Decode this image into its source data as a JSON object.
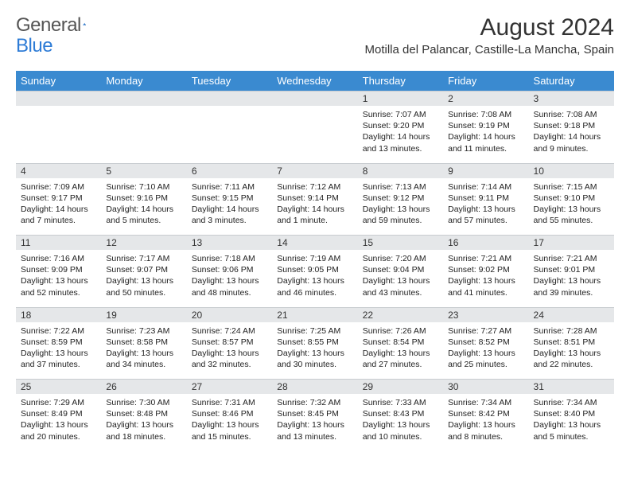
{
  "brand": {
    "part1": "General",
    "part2": "Blue"
  },
  "title": "August 2024",
  "location": "Motilla del Palancar, Castille-La Mancha, Spain",
  "header_bg": "#3a8ad0",
  "daynum_bg": "#e5e7e9",
  "weekdays": [
    "Sunday",
    "Monday",
    "Tuesday",
    "Wednesday",
    "Thursday",
    "Friday",
    "Saturday"
  ],
  "weeks": [
    [
      null,
      null,
      null,
      null,
      {
        "n": "1",
        "sr": "7:07 AM",
        "ss": "9:20 PM",
        "dl": "14 hours and 13 minutes."
      },
      {
        "n": "2",
        "sr": "7:08 AM",
        "ss": "9:19 PM",
        "dl": "14 hours and 11 minutes."
      },
      {
        "n": "3",
        "sr": "7:08 AM",
        "ss": "9:18 PM",
        "dl": "14 hours and 9 minutes."
      }
    ],
    [
      {
        "n": "4",
        "sr": "7:09 AM",
        "ss": "9:17 PM",
        "dl": "14 hours and 7 minutes."
      },
      {
        "n": "5",
        "sr": "7:10 AM",
        "ss": "9:16 PM",
        "dl": "14 hours and 5 minutes."
      },
      {
        "n": "6",
        "sr": "7:11 AM",
        "ss": "9:15 PM",
        "dl": "14 hours and 3 minutes."
      },
      {
        "n": "7",
        "sr": "7:12 AM",
        "ss": "9:14 PM",
        "dl": "14 hours and 1 minute."
      },
      {
        "n": "8",
        "sr": "7:13 AM",
        "ss": "9:12 PM",
        "dl": "13 hours and 59 minutes."
      },
      {
        "n": "9",
        "sr": "7:14 AM",
        "ss": "9:11 PM",
        "dl": "13 hours and 57 minutes."
      },
      {
        "n": "10",
        "sr": "7:15 AM",
        "ss": "9:10 PM",
        "dl": "13 hours and 55 minutes."
      }
    ],
    [
      {
        "n": "11",
        "sr": "7:16 AM",
        "ss": "9:09 PM",
        "dl": "13 hours and 52 minutes."
      },
      {
        "n": "12",
        "sr": "7:17 AM",
        "ss": "9:07 PM",
        "dl": "13 hours and 50 minutes."
      },
      {
        "n": "13",
        "sr": "7:18 AM",
        "ss": "9:06 PM",
        "dl": "13 hours and 48 minutes."
      },
      {
        "n": "14",
        "sr": "7:19 AM",
        "ss": "9:05 PM",
        "dl": "13 hours and 46 minutes."
      },
      {
        "n": "15",
        "sr": "7:20 AM",
        "ss": "9:04 PM",
        "dl": "13 hours and 43 minutes."
      },
      {
        "n": "16",
        "sr": "7:21 AM",
        "ss": "9:02 PM",
        "dl": "13 hours and 41 minutes."
      },
      {
        "n": "17",
        "sr": "7:21 AM",
        "ss": "9:01 PM",
        "dl": "13 hours and 39 minutes."
      }
    ],
    [
      {
        "n": "18",
        "sr": "7:22 AM",
        "ss": "8:59 PM",
        "dl": "13 hours and 37 minutes."
      },
      {
        "n": "19",
        "sr": "7:23 AM",
        "ss": "8:58 PM",
        "dl": "13 hours and 34 minutes."
      },
      {
        "n": "20",
        "sr": "7:24 AM",
        "ss": "8:57 PM",
        "dl": "13 hours and 32 minutes."
      },
      {
        "n": "21",
        "sr": "7:25 AM",
        "ss": "8:55 PM",
        "dl": "13 hours and 30 minutes."
      },
      {
        "n": "22",
        "sr": "7:26 AM",
        "ss": "8:54 PM",
        "dl": "13 hours and 27 minutes."
      },
      {
        "n": "23",
        "sr": "7:27 AM",
        "ss": "8:52 PM",
        "dl": "13 hours and 25 minutes."
      },
      {
        "n": "24",
        "sr": "7:28 AM",
        "ss": "8:51 PM",
        "dl": "13 hours and 22 minutes."
      }
    ],
    [
      {
        "n": "25",
        "sr": "7:29 AM",
        "ss": "8:49 PM",
        "dl": "13 hours and 20 minutes."
      },
      {
        "n": "26",
        "sr": "7:30 AM",
        "ss": "8:48 PM",
        "dl": "13 hours and 18 minutes."
      },
      {
        "n": "27",
        "sr": "7:31 AM",
        "ss": "8:46 PM",
        "dl": "13 hours and 15 minutes."
      },
      {
        "n": "28",
        "sr": "7:32 AM",
        "ss": "8:45 PM",
        "dl": "13 hours and 13 minutes."
      },
      {
        "n": "29",
        "sr": "7:33 AM",
        "ss": "8:43 PM",
        "dl": "13 hours and 10 minutes."
      },
      {
        "n": "30",
        "sr": "7:34 AM",
        "ss": "8:42 PM",
        "dl": "13 hours and 8 minutes."
      },
      {
        "n": "31",
        "sr": "7:34 AM",
        "ss": "8:40 PM",
        "dl": "13 hours and 5 minutes."
      }
    ]
  ],
  "labels": {
    "sunrise": "Sunrise: ",
    "sunset": "Sunset: ",
    "daylight": "Daylight: "
  }
}
